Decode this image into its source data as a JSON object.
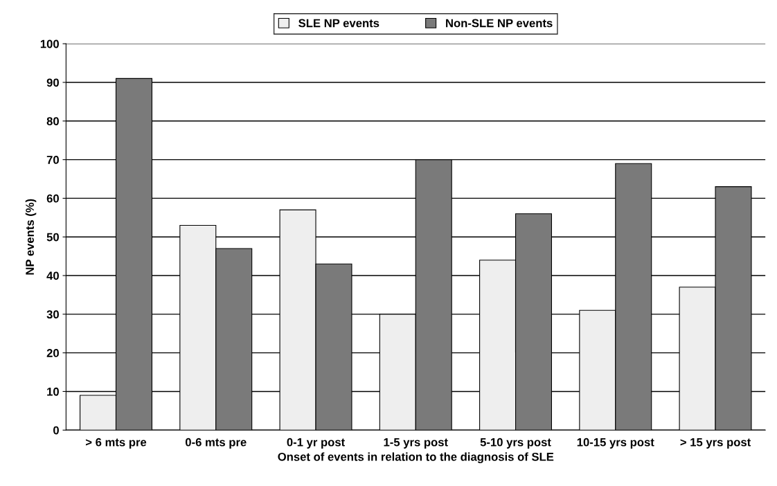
{
  "chart_data": {
    "type": "bar",
    "xlabel": "Onset of events in relation to the diagnosis of SLE",
    "ylabel": "NP events (%)",
    "categories": [
      "> 6 mts pre",
      "0-6 mts pre",
      "0-1 yr post",
      "1-5 yrs post",
      "5-10 yrs post",
      "10-15 yrs post",
      "> 15 yrs post"
    ],
    "series": [
      {
        "name": "SLE NP events",
        "color": "#eeeeee",
        "values": [
          9,
          53,
          57,
          30,
          44,
          31,
          37
        ]
      },
      {
        "name": "Non-SLE NP events",
        "color": "#7a7a7a",
        "values": [
          91,
          47,
          43,
          70,
          56,
          69,
          63
        ]
      }
    ],
    "ylim": [
      0,
      100
    ],
    "yticks": [
      0,
      10,
      20,
      30,
      40,
      50,
      60,
      70,
      80,
      90,
      100
    ],
    "grid": "y",
    "legend": "top"
  }
}
